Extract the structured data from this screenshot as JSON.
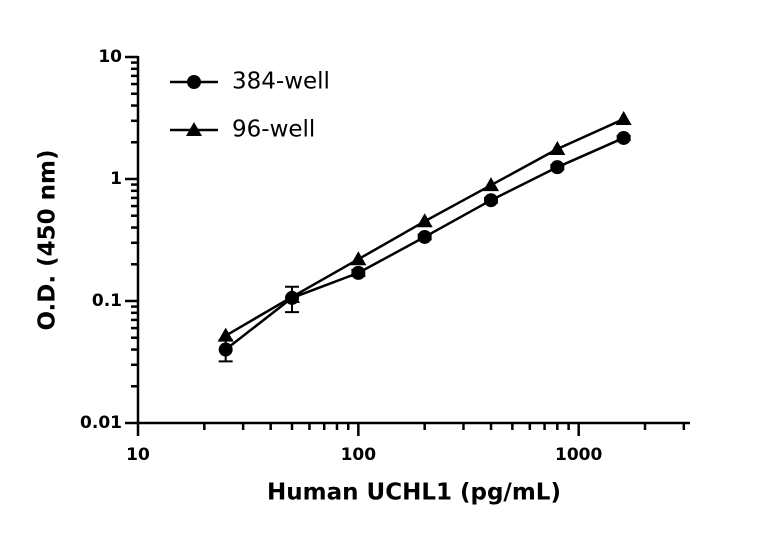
{
  "chart_data": {
    "type": "scatter",
    "x_label": "Human UCHL1 (pg/mL)",
    "y_label": "O.D. (450 nm)",
    "x_log": true,
    "y_log": true,
    "xlim": [
      10,
      3200
    ],
    "ylim": [
      0.01,
      10
    ],
    "xticks": [
      10,
      100,
      1000
    ],
    "yticks": [
      0.01,
      0.1,
      1,
      10
    ],
    "legend": "upper left",
    "series": [
      {
        "name": "384-well",
        "marker": "circle",
        "color": "#000000",
        "x": [
          25,
          50,
          100,
          200,
          400,
          800,
          1600
        ],
        "values": [
          0.04,
          0.106,
          0.17,
          0.335,
          0.67,
          1.25,
          2.17
        ],
        "errors": [
          0.008,
          0.025,
          0.01,
          0.015,
          0.03,
          0.05,
          0.08
        ]
      },
      {
        "name": "96-well",
        "marker": "triangle",
        "color": "#000000",
        "x": [
          25,
          50,
          100,
          200,
          400,
          800,
          1600
        ],
        "values": [
          0.052,
          0.108,
          0.22,
          0.45,
          0.89,
          1.76,
          3.1
        ]
      }
    ]
  }
}
